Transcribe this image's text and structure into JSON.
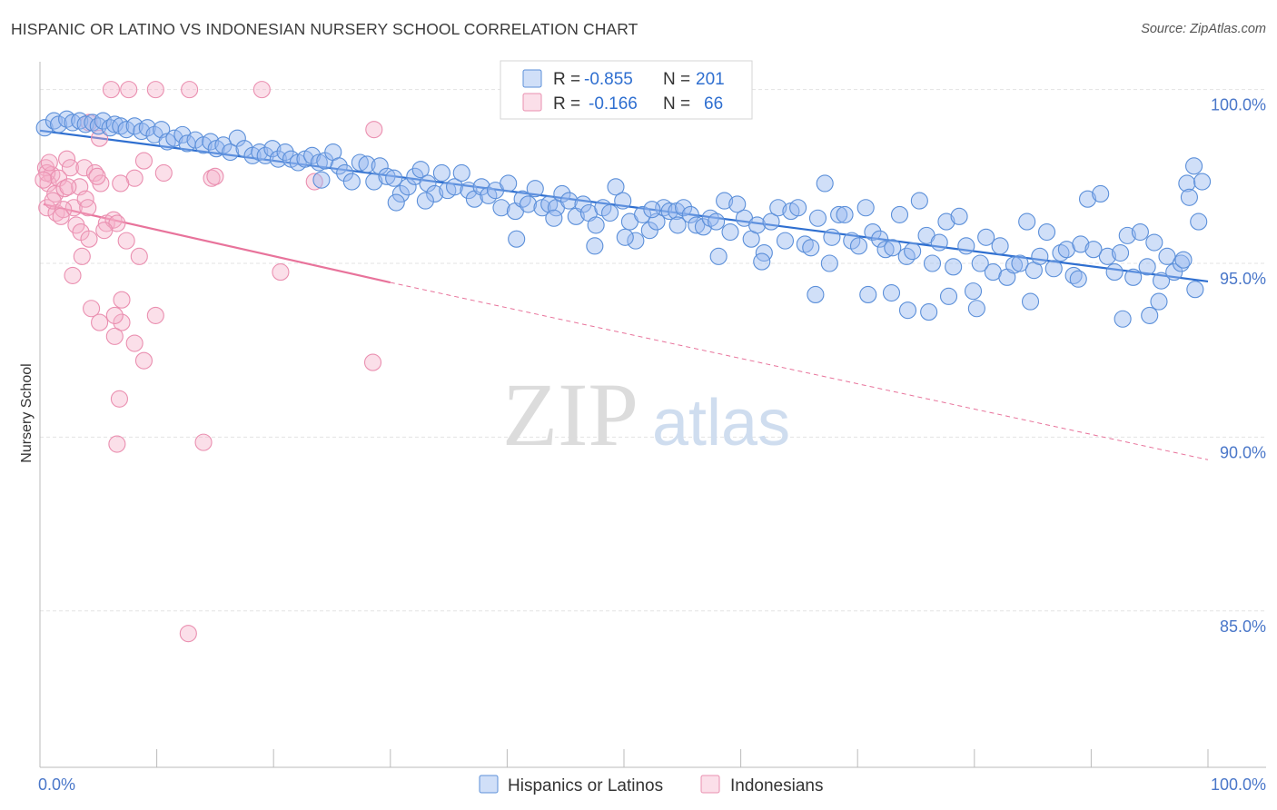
{
  "title": "HISPANIC OR LATINO VS INDONESIAN NURSERY SCHOOL CORRELATION CHART",
  "source": "Source: ZipAtlas.com",
  "watermark": {
    "zip": "ZIP",
    "atlas": "atlas"
  },
  "colors": {
    "blue": "#5b8fd9",
    "blue_fill": "rgba(150,185,240,0.45)",
    "blue_line": "#2f6fd0",
    "pink": "#ea8fb0",
    "pink_fill": "rgba(245,175,200,0.40)",
    "pink_line": "#e8739b",
    "grid": "#e3e3e3",
    "tick_text": "#4a77c9"
  },
  "legend": {
    "rows": [
      {
        "r_label": "R =",
        "r_value": "-0.855",
        "n_label": "N =",
        "n_value": "201"
      },
      {
        "r_label": "R =",
        "r_value": "-0.166",
        "n_label": "N =",
        "n_value": "66"
      }
    ]
  },
  "chart_data": {
    "type": "scatter",
    "title": "HISPANIC OR LATINO VS INDONESIAN NURSERY SCHOOL CORRELATION CHART",
    "xlabel": "",
    "ylabel": "Nursery School",
    "xlim": [
      0,
      100
    ],
    "ylim": [
      80.5,
      100.8
    ],
    "x_tick_labels": [
      "0.0%",
      "100.0%"
    ],
    "y_ticks": [
      100,
      95,
      90,
      85
    ],
    "y_tick_labels": [
      "100.0%",
      "95.0%",
      "90.0%",
      "85.0%"
    ],
    "grid": true,
    "legend_position": "bottom",
    "series": [
      {
        "name": "Hispanics or Latinos",
        "r": -0.855,
        "n": 201,
        "trend": {
          "x": [
            0,
            100
          ],
          "y": [
            98.82,
            94.48
          ],
          "style": "solid"
        },
        "points": [
          [
            0.4,
            98.9
          ],
          [
            1.2,
            99.1
          ],
          [
            1.6,
            99.0
          ],
          [
            2.3,
            99.15
          ],
          [
            2.8,
            99.05
          ],
          [
            3.4,
            99.1
          ],
          [
            3.9,
            99.0
          ],
          [
            4.5,
            99.05
          ],
          [
            5.0,
            98.95
          ],
          [
            5.4,
            99.1
          ],
          [
            6.0,
            98.9
          ],
          [
            6.4,
            99.0
          ],
          [
            6.9,
            98.95
          ],
          [
            7.4,
            98.85
          ],
          [
            8.1,
            98.95
          ],
          [
            8.7,
            98.8
          ],
          [
            9.2,
            98.9
          ],
          [
            9.8,
            98.7
          ],
          [
            10.4,
            98.85
          ],
          [
            10.9,
            98.5
          ],
          [
            11.5,
            98.6
          ],
          [
            12.2,
            98.7
          ],
          [
            12.6,
            98.45
          ],
          [
            13.3,
            98.55
          ],
          [
            14.0,
            98.4
          ],
          [
            14.6,
            98.5
          ],
          [
            15.1,
            98.3
          ],
          [
            15.7,
            98.4
          ],
          [
            16.3,
            98.2
          ],
          [
            16.9,
            98.6
          ],
          [
            17.5,
            98.3
          ],
          [
            18.2,
            98.1
          ],
          [
            18.8,
            98.2
          ],
          [
            19.3,
            98.1
          ],
          [
            19.9,
            98.3
          ],
          [
            20.4,
            98.0
          ],
          [
            21.0,
            98.2
          ],
          [
            21.5,
            98.0
          ],
          [
            22.1,
            97.9
          ],
          [
            22.7,
            98.0
          ],
          [
            23.3,
            98.1
          ],
          [
            23.9,
            97.9
          ],
          [
            24.4,
            97.95
          ],
          [
            25.1,
            98.2
          ],
          [
            25.6,
            97.8
          ],
          [
            26.1,
            97.6
          ],
          [
            26.7,
            97.35
          ],
          [
            27.4,
            97.9
          ],
          [
            28.0,
            97.85
          ],
          [
            28.6,
            97.35
          ],
          [
            29.1,
            97.8
          ],
          [
            29.7,
            97.5
          ],
          [
            30.3,
            97.45
          ],
          [
            30.9,
            97.0
          ],
          [
            31.5,
            97.2
          ],
          [
            32.1,
            97.5
          ],
          [
            32.6,
            97.7
          ],
          [
            33.2,
            97.3
          ],
          [
            33.8,
            97.0
          ],
          [
            34.4,
            97.6
          ],
          [
            34.9,
            97.1
          ],
          [
            35.5,
            97.2
          ],
          [
            36.1,
            97.6
          ],
          [
            36.7,
            97.1
          ],
          [
            37.2,
            96.85
          ],
          [
            37.8,
            97.2
          ],
          [
            38.4,
            96.95
          ],
          [
            39.0,
            97.1
          ],
          [
            39.5,
            96.6
          ],
          [
            40.1,
            97.3
          ],
          [
            40.7,
            96.5
          ],
          [
            41.3,
            96.85
          ],
          [
            41.8,
            96.7
          ],
          [
            42.4,
            97.15
          ],
          [
            43.0,
            96.6
          ],
          [
            43.6,
            96.7
          ],
          [
            44.2,
            96.6
          ],
          [
            44.7,
            97.0
          ],
          [
            45.3,
            96.8
          ],
          [
            45.9,
            96.35
          ],
          [
            46.5,
            96.7
          ],
          [
            47.0,
            96.45
          ],
          [
            47.6,
            96.1
          ],
          [
            48.2,
            96.6
          ],
          [
            48.8,
            96.45
          ],
          [
            49.3,
            97.2
          ],
          [
            49.9,
            96.8
          ],
          [
            50.5,
            96.2
          ],
          [
            51.0,
            95.65
          ],
          [
            51.6,
            96.4
          ],
          [
            52.2,
            95.95
          ],
          [
            52.8,
            96.2
          ],
          [
            53.4,
            96.6
          ],
          [
            53.9,
            96.5
          ],
          [
            54.5,
            96.5
          ],
          [
            55.1,
            96.6
          ],
          [
            55.7,
            96.4
          ],
          [
            56.2,
            96.1
          ],
          [
            56.8,
            96.05
          ],
          [
            57.4,
            96.3
          ],
          [
            57.9,
            96.2
          ],
          [
            58.6,
            96.8
          ],
          [
            59.1,
            95.9
          ],
          [
            59.7,
            96.7
          ],
          [
            60.3,
            96.3
          ],
          [
            60.9,
            95.7
          ],
          [
            61.4,
            96.1
          ],
          [
            62.0,
            95.3
          ],
          [
            62.6,
            96.2
          ],
          [
            63.2,
            96.6
          ],
          [
            63.8,
            95.65
          ],
          [
            64.3,
            96.5
          ],
          [
            64.9,
            96.6
          ],
          [
            65.5,
            95.55
          ],
          [
            66.0,
            95.45
          ],
          [
            66.6,
            96.3
          ],
          [
            67.2,
            97.3
          ],
          [
            67.8,
            95.75
          ],
          [
            68.4,
            96.4
          ],
          [
            68.9,
            96.4
          ],
          [
            69.5,
            95.65
          ],
          [
            70.1,
            95.5
          ],
          [
            70.7,
            96.6
          ],
          [
            71.3,
            95.9
          ],
          [
            71.9,
            95.7
          ],
          [
            72.4,
            95.4
          ],
          [
            73.0,
            95.45
          ],
          [
            73.6,
            96.4
          ],
          [
            74.2,
            95.2
          ],
          [
            74.7,
            95.35
          ],
          [
            75.3,
            96.8
          ],
          [
            75.9,
            95.8
          ],
          [
            76.4,
            95.0
          ],
          [
            77.0,
            95.6
          ],
          [
            77.6,
            96.2
          ],
          [
            78.2,
            94.9
          ],
          [
            78.7,
            96.35
          ],
          [
            79.3,
            95.5
          ],
          [
            79.9,
            94.2
          ],
          [
            80.5,
            95.0
          ],
          [
            81.0,
            95.75
          ],
          [
            81.6,
            94.75
          ],
          [
            82.2,
            95.5
          ],
          [
            82.8,
            94.6
          ],
          [
            83.4,
            94.95
          ],
          [
            83.9,
            95.0
          ],
          [
            84.5,
            96.2
          ],
          [
            85.1,
            94.8
          ],
          [
            85.6,
            95.2
          ],
          [
            86.2,
            95.9
          ],
          [
            86.8,
            94.85
          ],
          [
            87.4,
            95.3
          ],
          [
            87.9,
            95.4
          ],
          [
            88.5,
            94.65
          ],
          [
            89.1,
            95.55
          ],
          [
            89.7,
            96.85
          ],
          [
            90.2,
            95.4
          ],
          [
            90.8,
            97.0
          ],
          [
            91.4,
            95.2
          ],
          [
            92.0,
            94.75
          ],
          [
            92.5,
            95.3
          ],
          [
            93.1,
            95.8
          ],
          [
            93.6,
            94.6
          ],
          [
            94.2,
            95.9
          ],
          [
            94.8,
            94.9
          ],
          [
            95.4,
            95.6
          ],
          [
            96.0,
            94.5
          ],
          [
            96.5,
            95.2
          ],
          [
            97.1,
            94.75
          ],
          [
            97.7,
            95.0
          ],
          [
            98.2,
            97.3
          ],
          [
            98.8,
            97.8
          ],
          [
            97.9,
            95.1
          ],
          [
            99.2,
            96.2
          ],
          [
            99.5,
            97.35
          ],
          [
            98.4,
            96.9
          ],
          [
            66.4,
            94.1
          ],
          [
            70.9,
            94.1
          ],
          [
            72.9,
            94.15
          ],
          [
            67.6,
            95.0
          ],
          [
            30.5,
            96.75
          ],
          [
            40.8,
            95.7
          ],
          [
            50.1,
            95.75
          ],
          [
            54.6,
            96.1
          ],
          [
            76.1,
            93.6
          ],
          [
            74.3,
            93.65
          ],
          [
            77.8,
            94.05
          ],
          [
            80.2,
            93.7
          ],
          [
            84.8,
            93.9
          ],
          [
            88.9,
            94.55
          ],
          [
            92.7,
            93.4
          ],
          [
            95.0,
            93.5
          ],
          [
            95.8,
            93.9
          ],
          [
            98.9,
            94.25
          ],
          [
            24.1,
            97.4
          ],
          [
            33.0,
            96.8
          ],
          [
            44.0,
            96.3
          ],
          [
            47.5,
            95.5
          ],
          [
            52.4,
            96.55
          ],
          [
            58.1,
            95.2
          ],
          [
            61.8,
            95.05
          ]
        ]
      },
      {
        "name": "Indonesians",
        "r": -0.166,
        "n": 66,
        "trend": {
          "x_solid": [
            0.3,
            30.0
          ],
          "x_dashed": [
            30.0,
            100
          ],
          "y_at": {
            "0.3": 96.7,
            "30.0": 94.45,
            "100": 89.35
          }
        },
        "points": [
          [
            6.1,
            100.0
          ],
          [
            7.6,
            100.0
          ],
          [
            9.9,
            100.0
          ],
          [
            12.8,
            100.0
          ],
          [
            19.0,
            100.0
          ],
          [
            4.2,
            99.05
          ],
          [
            28.6,
            98.85
          ],
          [
            5.1,
            98.6
          ],
          [
            0.5,
            97.75
          ],
          [
            2.3,
            98.0
          ],
          [
            1.0,
            97.55
          ],
          [
            0.7,
            97.3
          ],
          [
            2.6,
            97.75
          ],
          [
            3.8,
            97.75
          ],
          [
            0.6,
            97.6
          ],
          [
            1.6,
            97.45
          ],
          [
            1.3,
            97.0
          ],
          [
            2.1,
            97.15
          ],
          [
            3.4,
            97.2
          ],
          [
            4.7,
            97.6
          ],
          [
            5.2,
            97.3
          ],
          [
            8.1,
            97.45
          ],
          [
            10.6,
            97.6
          ],
          [
            14.7,
            97.45
          ],
          [
            23.5,
            97.35
          ],
          [
            8.9,
            97.95
          ],
          [
            0.6,
            96.6
          ],
          [
            1.4,
            96.45
          ],
          [
            2.9,
            96.6
          ],
          [
            3.9,
            96.85
          ],
          [
            4.1,
            96.6
          ],
          [
            5.7,
            96.15
          ],
          [
            6.3,
            96.25
          ],
          [
            6.6,
            96.15
          ],
          [
            1.1,
            96.8
          ],
          [
            3.1,
            96.1
          ],
          [
            3.5,
            95.9
          ],
          [
            5.5,
            95.95
          ],
          [
            4.2,
            95.7
          ],
          [
            7.4,
            95.65
          ],
          [
            8.5,
            95.2
          ],
          [
            3.6,
            95.2
          ],
          [
            2.8,
            94.65
          ],
          [
            20.6,
            94.75
          ],
          [
            4.4,
            93.7
          ],
          [
            5.1,
            93.3
          ],
          [
            7.0,
            93.95
          ],
          [
            7.0,
            93.3
          ],
          [
            9.9,
            93.5
          ],
          [
            6.4,
            93.5
          ],
          [
            6.4,
            92.9
          ],
          [
            8.1,
            92.7
          ],
          [
            8.9,
            92.2
          ],
          [
            28.5,
            92.15
          ],
          [
            6.8,
            91.1
          ],
          [
            6.6,
            89.8
          ],
          [
            14.0,
            89.85
          ],
          [
            12.7,
            84.35
          ],
          [
            0.3,
            97.4
          ],
          [
            0.8,
            97.9
          ],
          [
            2.0,
            96.55
          ],
          [
            6.9,
            97.3
          ],
          [
            1.8,
            96.35
          ],
          [
            2.4,
            97.2
          ],
          [
            4.9,
            97.5
          ],
          [
            15.0,
            97.5
          ]
        ]
      }
    ]
  },
  "bottom_legend": [
    {
      "label": "Hispanics or Latinos"
    },
    {
      "label": "Indonesians"
    }
  ]
}
